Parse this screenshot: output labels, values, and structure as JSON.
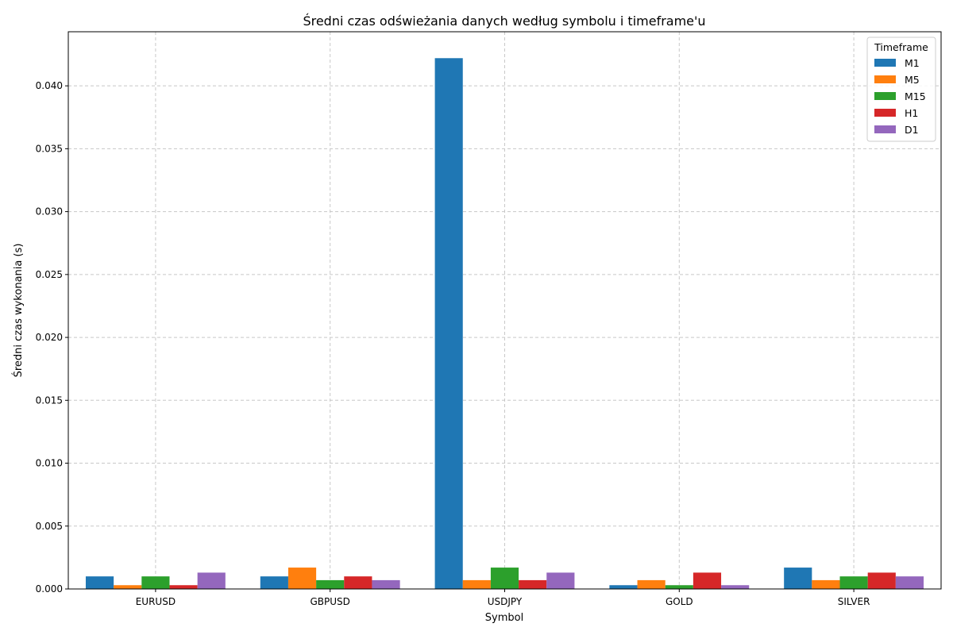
{
  "chart_data": {
    "type": "bar",
    "title": "Średni czas odświeżania danych według symbolu i timeframe'u",
    "xlabel": "Symbol",
    "ylabel": "Średni czas wykonania (s)",
    "categories": [
      "EURUSD",
      "GBPUSD",
      "USDJPY",
      "GOLD",
      "SILVER"
    ],
    "ylim": [
      0,
      0.0443
    ],
    "yticks": [
      0.0,
      0.005,
      0.01,
      0.015,
      0.02,
      0.025,
      0.03,
      0.035,
      0.04
    ],
    "ytick_labels": [
      "0.000",
      "0.005",
      "0.010",
      "0.015",
      "0.020",
      "0.025",
      "0.030",
      "0.035",
      "0.040"
    ],
    "grid": true,
    "legend": {
      "title": "Timeframe",
      "position": "top-right"
    },
    "series": [
      {
        "name": "M1",
        "color": "#1f77b4",
        "values": [
          0.001,
          0.001,
          0.0422,
          0.0003,
          0.0017
        ]
      },
      {
        "name": "M5",
        "color": "#ff7f0e",
        "values": [
          0.0003,
          0.0017,
          0.0007,
          0.0007,
          0.0007
        ]
      },
      {
        "name": "M15",
        "color": "#2ca02c",
        "values": [
          0.001,
          0.0007,
          0.0017,
          0.0003,
          0.001
        ]
      },
      {
        "name": "H1",
        "color": "#d62728",
        "values": [
          0.0003,
          0.001,
          0.0007,
          0.0013,
          0.0013
        ]
      },
      {
        "name": "D1",
        "color": "#9467bd",
        "values": [
          0.0013,
          0.0007,
          0.0013,
          0.0003,
          0.001
        ]
      }
    ]
  }
}
